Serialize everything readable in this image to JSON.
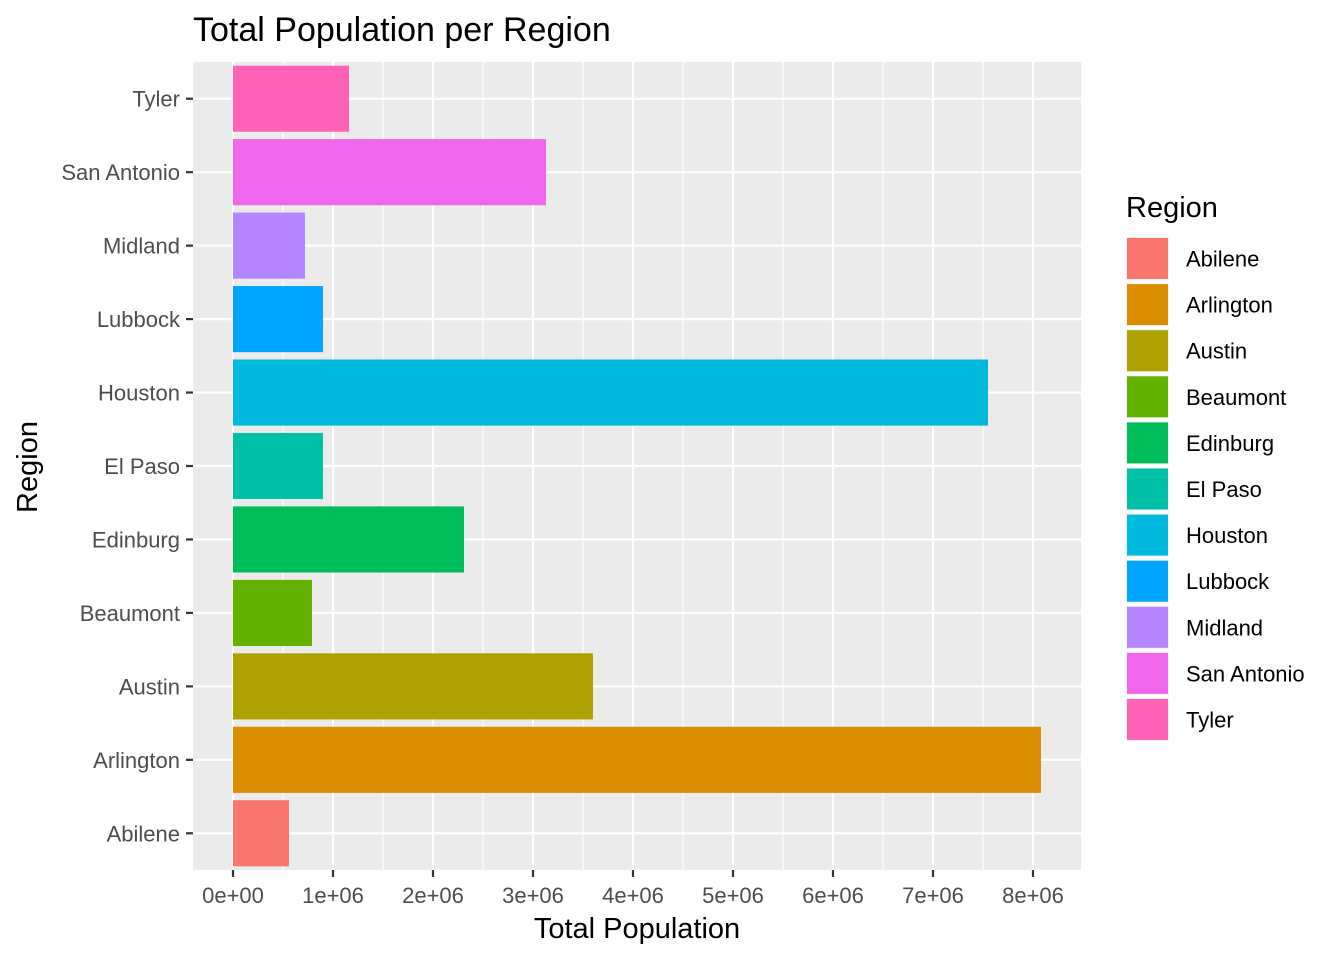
{
  "chart_data": {
    "type": "bar",
    "orientation": "horizontal",
    "title": "Total Population per Region",
    "xlabel": "Total Population",
    "ylabel": "Region",
    "categories": [
      "Abilene",
      "Arlington",
      "Austin",
      "Beaumont",
      "Edinburg",
      "El Paso",
      "Houston",
      "Lubbock",
      "Midland",
      "San Antonio",
      "Tyler"
    ],
    "values": [
      560000,
      8080000,
      3600000,
      790000,
      2310000,
      900000,
      7550000,
      900000,
      720000,
      3130000,
      1160000
    ],
    "colors": [
      "#F8766D",
      "#DB8E00",
      "#AEA200",
      "#64B200",
      "#00BD5C",
      "#00C1A7",
      "#00BADE",
      "#00A6FF",
      "#B385FF",
      "#EF67EB",
      "#FF63B6"
    ],
    "xlim": [
      -400000,
      8480000
    ],
    "xticks": [
      0,
      1000000,
      2000000,
      3000000,
      4000000,
      5000000,
      6000000,
      7000000,
      8000000
    ],
    "xtick_labels": [
      "0e+00",
      "1e+06",
      "2e+06",
      "3e+06",
      "4e+06",
      "5e+06",
      "6e+06",
      "7e+06",
      "8e+06"
    ],
    "grid": true,
    "panel_background": "#EBEBEB",
    "legend": {
      "title": "Region",
      "placement": "right",
      "entries": [
        "Abilene",
        "Arlington",
        "Austin",
        "Beaumont",
        "Edinburg",
        "El Paso",
        "Houston",
        "Lubbock",
        "Midland",
        "San Antonio",
        "Tyler"
      ]
    }
  }
}
